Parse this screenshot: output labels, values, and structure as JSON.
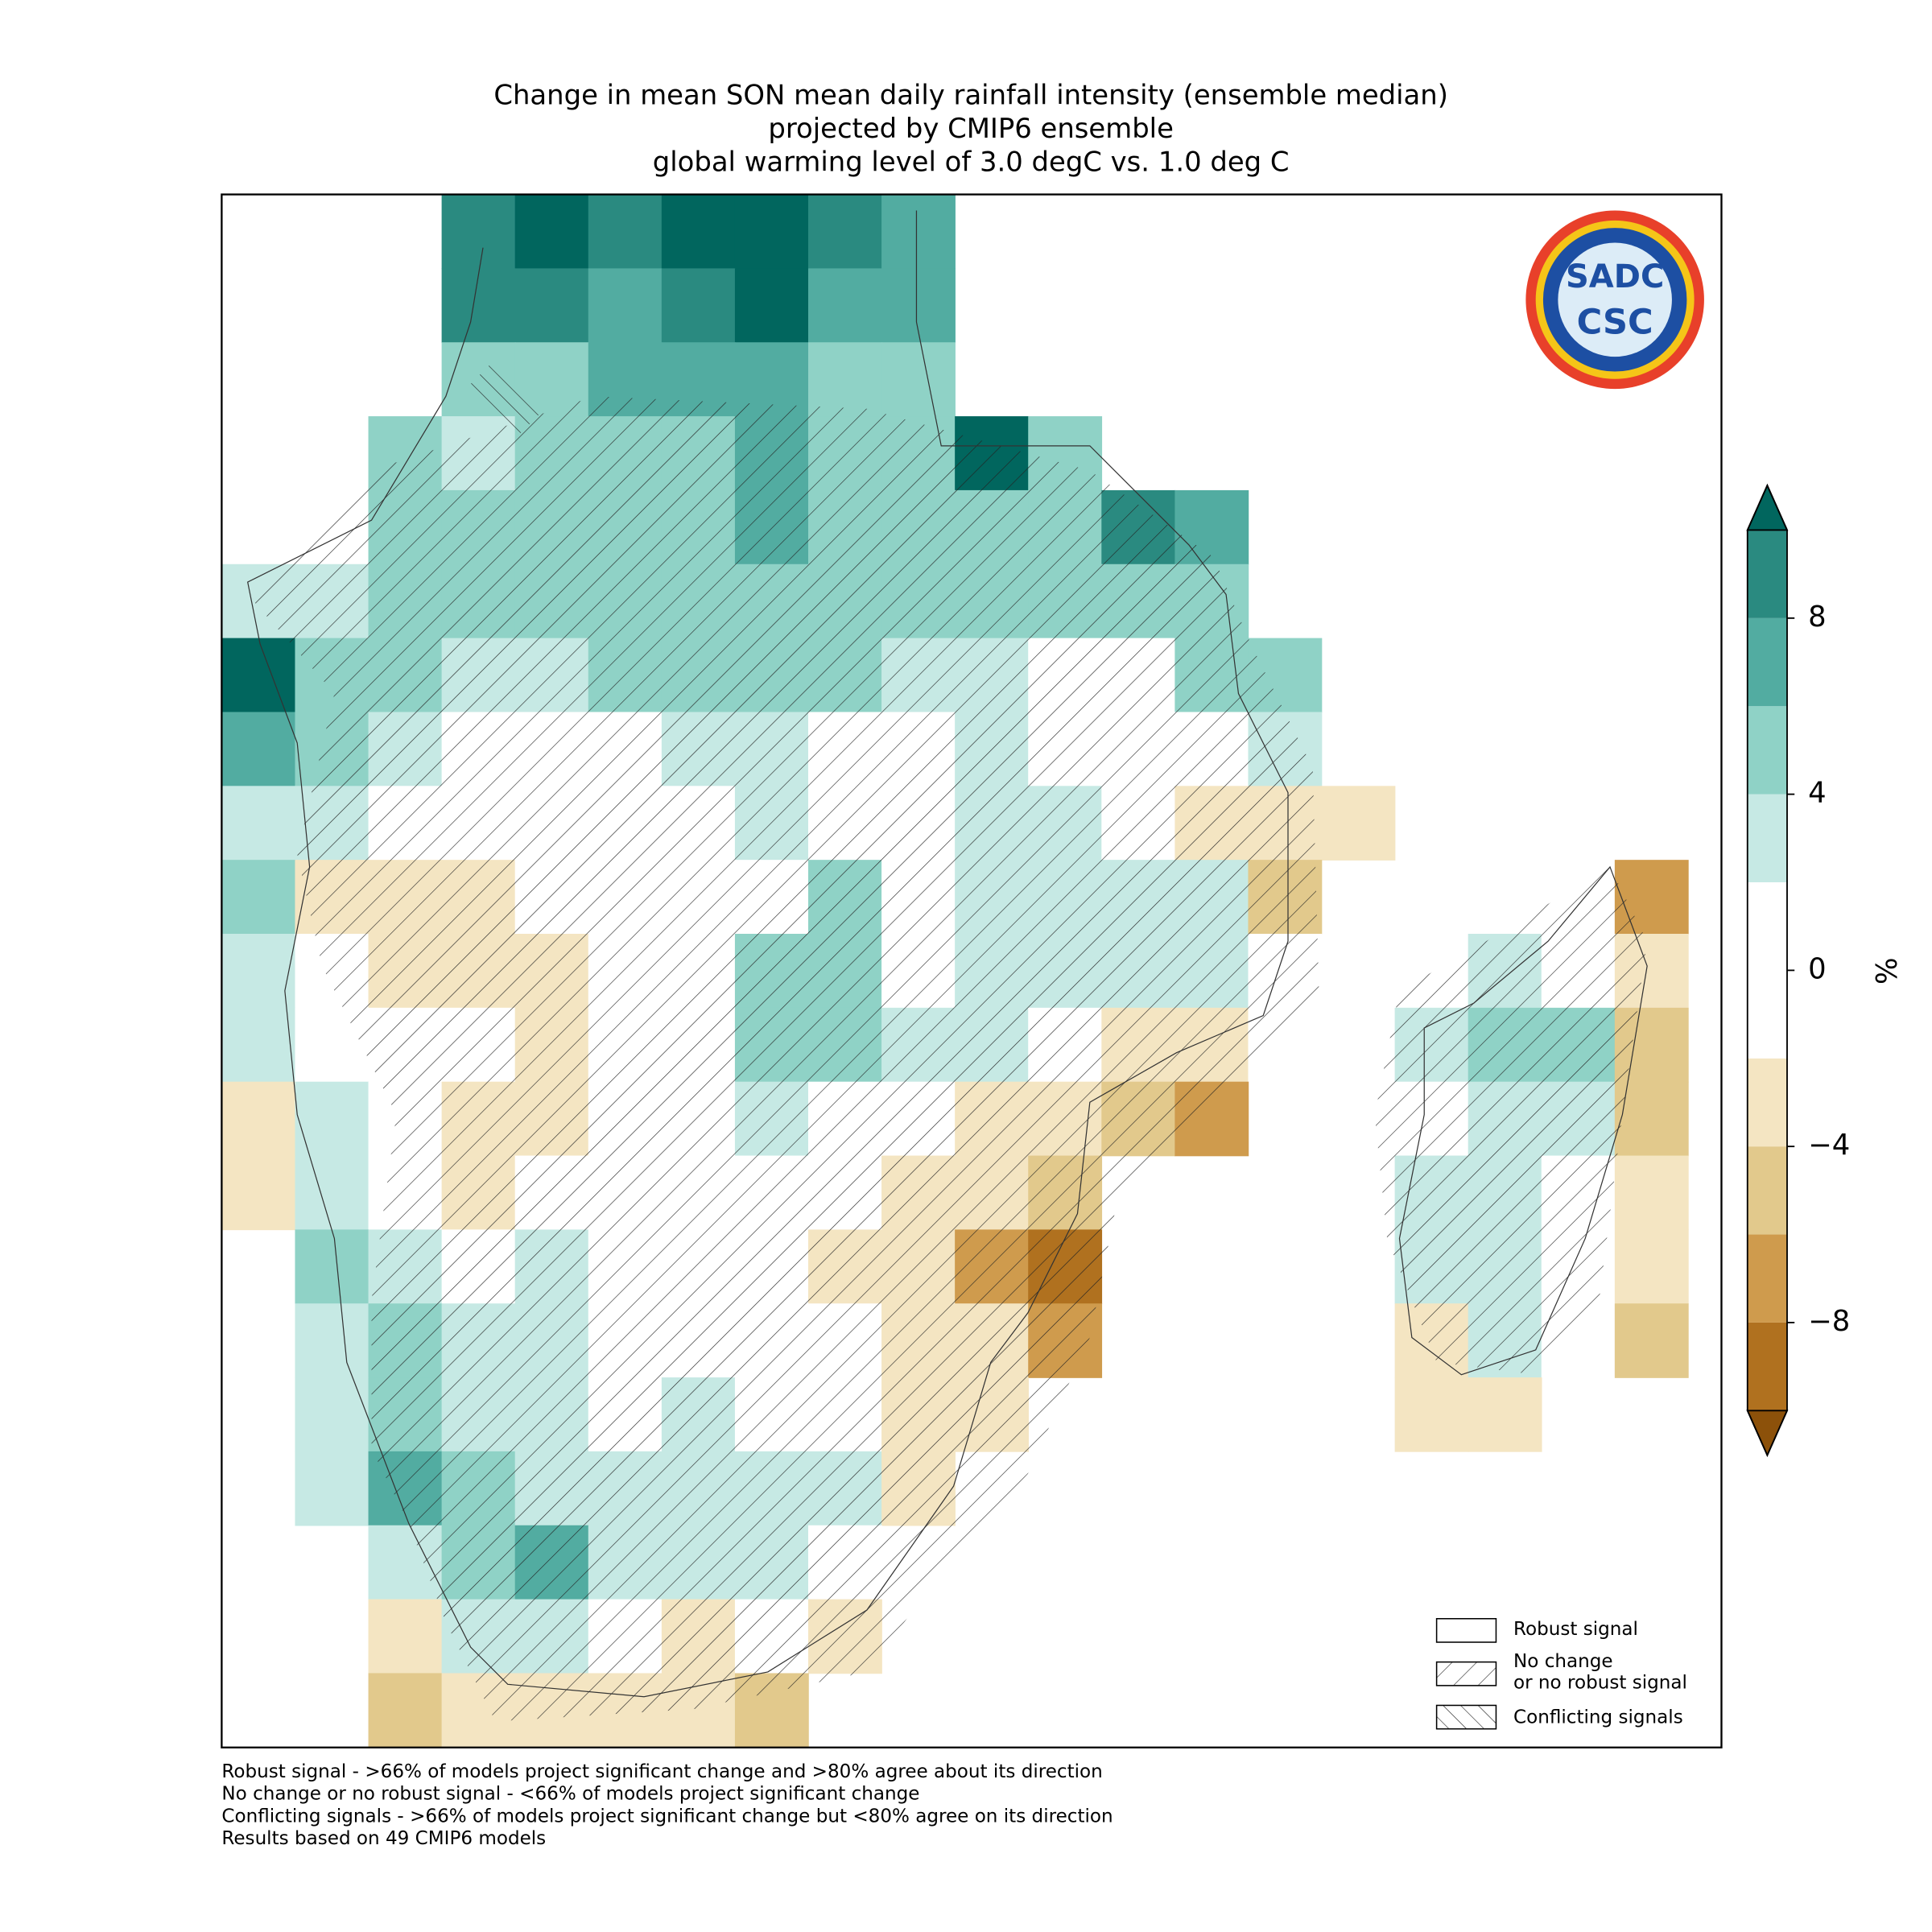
{
  "title": [
    "Change in mean SON mean daily rainfall intensity (ensemble median)",
    "projected by CMIP6 ensemble",
    "global warming level of 3.0 degC vs. 1.0 deg C"
  ],
  "map": {
    "grid": {
      "values": [
        [
          null,
          null,
          null,
          9,
          11,
          9,
          11,
          11,
          9,
          7,
          null,
          null,
          null,
          null,
          null,
          null,
          null,
          null,
          null,
          null
        ],
        [
          null,
          null,
          null,
          9,
          9,
          7,
          9,
          11,
          7,
          7,
          null,
          null,
          null,
          null,
          null,
          null,
          null,
          null,
          null,
          null
        ],
        [
          null,
          null,
          null,
          5,
          5,
          7,
          7,
          7,
          5,
          5,
          null,
          null,
          null,
          null,
          null,
          null,
          null,
          null,
          null,
          null
        ],
        [
          null,
          null,
          5,
          3,
          5,
          5,
          5,
          7,
          5,
          5,
          11,
          5,
          null,
          null,
          null,
          null,
          null,
          null,
          null,
          null
        ],
        [
          null,
          null,
          5,
          5,
          5,
          5,
          5,
          7,
          5,
          5,
          5,
          5,
          9,
          7,
          null,
          null,
          null,
          null,
          null,
          null
        ],
        [
          3,
          3,
          5,
          5,
          5,
          5,
          5,
          5,
          5,
          5,
          5,
          5,
          5,
          5,
          null,
          null,
          null,
          null,
          null,
          null
        ],
        [
          11,
          5,
          5,
          3,
          3,
          5,
          5,
          5,
          5,
          3,
          3,
          0,
          0,
          5,
          5,
          null,
          null,
          null,
          null,
          null
        ],
        [
          7,
          5,
          3,
          0,
          0,
          0,
          3,
          3,
          0,
          0,
          3,
          0,
          0,
          0,
          3,
          null,
          null,
          null,
          null,
          null
        ],
        [
          3,
          3,
          0,
          0,
          0,
          0,
          0,
          3,
          0,
          0,
          3,
          3,
          0,
          -3,
          -3,
          -3,
          null,
          null,
          null,
          null
        ],
        [
          5,
          -3,
          -3,
          -3,
          0,
          0,
          0,
          0,
          5,
          0,
          3,
          3,
          3,
          3,
          -5,
          null,
          null,
          null,
          null,
          -7
        ],
        [
          3,
          0,
          -3,
          -3,
          -3,
          0,
          0,
          5,
          5,
          0,
          3,
          3,
          3,
          3,
          0,
          null,
          null,
          3,
          0,
          -3
        ],
        [
          3,
          0,
          0,
          0,
          -3,
          0,
          0,
          5,
          5,
          3,
          3,
          0,
          -3,
          -3,
          0,
          null,
          3,
          5,
          5,
          -5
        ],
        [
          -3,
          3,
          0,
          -3,
          -3,
          0,
          0,
          3,
          0,
          0,
          -3,
          -3,
          -5,
          -7,
          null,
          null,
          0,
          3,
          3,
          -5
        ],
        [
          -3,
          3,
          0,
          -3,
          0,
          0,
          0,
          0,
          0,
          -3,
          -3,
          -5,
          null,
          null,
          null,
          null,
          3,
          3,
          0,
          -3
        ],
        [
          null,
          5,
          3,
          0,
          3,
          0,
          0,
          0,
          -3,
          -3,
          -7,
          -9,
          null,
          null,
          null,
          null,
          3,
          3,
          0,
          -3
        ],
        [
          null,
          3,
          5,
          3,
          3,
          0,
          0,
          0,
          0,
          -3,
          -3,
          -7,
          null,
          null,
          null,
          null,
          -3,
          3,
          0,
          -5
        ],
        [
          null,
          3,
          5,
          3,
          3,
          0,
          3,
          0,
          0,
          -3,
          -3,
          null,
          null,
          null,
          null,
          null,
          -3,
          -3,
          null,
          null
        ],
        [
          null,
          3,
          7,
          5,
          3,
          3,
          3,
          3,
          3,
          -3,
          null,
          null,
          null,
          null,
          null,
          null,
          null,
          null,
          null,
          null
        ],
        [
          null,
          null,
          3,
          5,
          7,
          3,
          3,
          3,
          0,
          null,
          null,
          null,
          null,
          null,
          null,
          null,
          null,
          null,
          null,
          null
        ],
        [
          null,
          null,
          -3,
          3,
          3,
          0,
          -3,
          0,
          -3,
          null,
          null,
          null,
          null,
          null,
          null,
          null,
          null,
          null,
          null,
          null
        ],
        [
          null,
          null,
          -5,
          -3,
          -3,
          -3,
          -3,
          -5,
          null,
          null,
          null,
          null,
          null,
          null,
          null,
          null,
          null,
          null,
          null,
          null
        ]
      ]
    }
  },
  "colorbar": {
    "label": "%",
    "lim": [
      -10,
      10
    ],
    "bounds": [
      -10,
      -8,
      -6,
      -4,
      -2,
      2,
      4,
      6,
      8,
      10
    ],
    "colors": [
      "#b0711f",
      "#cf9b4d",
      "#e2c98c",
      "#f4e5c2",
      "#ffffff",
      "#c6e9e4",
      "#8fd2c6",
      "#52aca1",
      "#2a8a80"
    ],
    "under": "#8c510a",
    "over": "#01665e",
    "ticks": [
      {
        "value": -8,
        "label": "−8"
      },
      {
        "value": -4,
        "label": "−4"
      },
      0,
      4,
      8
    ]
  },
  "legend": {
    "items": [
      [
        "Robust signal"
      ],
      [
        "No change",
        "or no robust signal"
      ],
      [
        "Conflicting signals"
      ]
    ]
  },
  "footnotes": [
    "Robust signal - >66% of models project significant change and >80% agree about its direction",
    "No change or no robust signal - <66% of models project significant change",
    "Conflicting signals - >66% of models project significant change but <80% agree on its direction",
    "Results based on 49 CMIP6 models"
  ],
  "logo": {
    "top": "SADC",
    "bottom": "CSC"
  }
}
